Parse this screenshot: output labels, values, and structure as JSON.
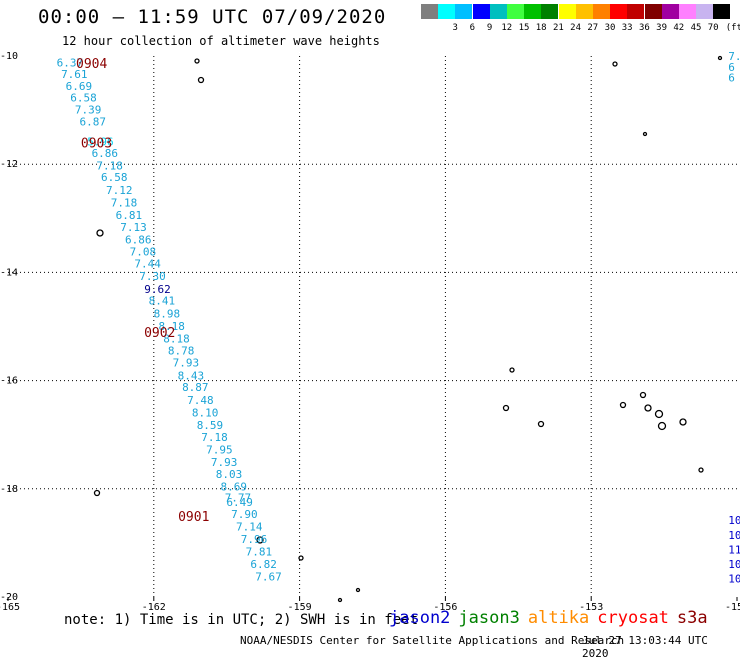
{
  "title": "00:00 — 11:59 UTC 07/09/2020",
  "subtitle": "12 hour collection of altimeter wave heights",
  "legend": {
    "unit": "(ft)",
    "items": [
      {
        "label": "",
        "color": "#7f7f7f"
      },
      {
        "label": "3",
        "color": "#00ffff"
      },
      {
        "label": "6",
        "color": "#00bfff"
      },
      {
        "label": "9",
        "color": "#0000ff"
      },
      {
        "label": "12",
        "color": "#00bfbf"
      },
      {
        "label": "15",
        "color": "#40ff40"
      },
      {
        "label": "18",
        "color": "#00c000"
      },
      {
        "label": "21",
        "color": "#008000"
      },
      {
        "label": "24",
        "color": "#ffff00"
      },
      {
        "label": "27",
        "color": "#ffc000"
      },
      {
        "label": "30",
        "color": "#ff8000"
      },
      {
        "label": "33",
        "color": "#ff0000"
      },
      {
        "label": "36",
        "color": "#c00000"
      },
      {
        "label": "39",
        "color": "#800000"
      },
      {
        "label": "42",
        "color": "#a000a0"
      },
      {
        "label": "45",
        "color": "#ff80ff"
      },
      {
        "label": "70",
        "color": "#c8b4f0"
      },
      {
        "label": "",
        "color": "#000000"
      }
    ]
  },
  "axes": {
    "x_ticks": [
      "-165",
      "-162",
      "-159",
      "-156",
      "-153",
      "-150"
    ],
    "y_ticks": [
      "-10",
      "-12",
      "-14",
      "-16",
      "-18",
      "-20"
    ],
    "lon_range": [
      -165,
      -150
    ],
    "lat_range": [
      -20,
      -10
    ],
    "grid": "dotted"
  },
  "chart_data": {
    "type": "scatter",
    "track_hours": [
      {
        "label": "0904",
        "lat": -10.13
      },
      {
        "label": "0903",
        "lat": -11.6
      },
      {
        "label": "0902",
        "lat": -15.1
      },
      {
        "label": "0901",
        "lat": -18.5
      }
    ],
    "track": [
      {
        "lat": -10.12,
        "value": "6.37",
        "color": "#1aa3d6"
      },
      {
        "lat": -10.33,
        "value": "7.61",
        "color": "#1aa3d6"
      },
      {
        "lat": -10.55,
        "value": "6.69",
        "color": "#1aa3d6"
      },
      {
        "lat": -10.77,
        "value": "6.58",
        "color": "#1aa3d6"
      },
      {
        "lat": -10.99,
        "value": "7.39",
        "color": "#1aa3d6"
      },
      {
        "lat": -11.21,
        "value": "6.87",
        "color": "#1aa3d6"
      },
      {
        "lat": -11.58,
        "value": "5.96",
        "color": "#00d2f0"
      },
      {
        "lat": -11.79,
        "value": "6.86",
        "color": "#1aa3d6"
      },
      {
        "lat": -12.02,
        "value": "7.18",
        "color": "#1aa3d6"
      },
      {
        "lat": -12.24,
        "value": "6.58",
        "color": "#1aa3d6"
      },
      {
        "lat": -12.48,
        "value": "7.12",
        "color": "#1aa3d6"
      },
      {
        "lat": -12.71,
        "value": "7.18",
        "color": "#1aa3d6"
      },
      {
        "lat": -12.94,
        "value": "6.81",
        "color": "#1aa3d6"
      },
      {
        "lat": -13.16,
        "value": "7.13",
        "color": "#1aa3d6"
      },
      {
        "lat": -13.39,
        "value": "6.86",
        "color": "#1aa3d6"
      },
      {
        "lat": -13.61,
        "value": "7.08",
        "color": "#1aa3d6"
      },
      {
        "lat": -13.84,
        "value": "7.44",
        "color": "#1aa3d6"
      },
      {
        "lat": -14.07,
        "value": "7.30",
        "color": "#1aa3d6"
      },
      {
        "lat": -14.31,
        "value": "9.62",
        "color": "#00008b"
      },
      {
        "lat": -14.52,
        "value": "8.41",
        "color": "#1aa3d6"
      },
      {
        "lat": -14.76,
        "value": "8.98",
        "color": "#1aa3d6"
      },
      {
        "lat": -14.99,
        "value": "8.18",
        "color": "#1aa3d6"
      },
      {
        "lat": -15.22,
        "value": "8.18",
        "color": "#1aa3d6"
      },
      {
        "lat": -15.44,
        "value": "8.78",
        "color": "#1aa3d6"
      },
      {
        "lat": -15.67,
        "value": "7.93",
        "color": "#1aa3d6"
      },
      {
        "lat": -15.91,
        "value": "8.43",
        "color": "#1aa3d6"
      },
      {
        "lat": -16.12,
        "value": "8.87",
        "color": "#1aa3d6"
      },
      {
        "lat": -16.36,
        "value": "7.48",
        "color": "#1aa3d6"
      },
      {
        "lat": -16.59,
        "value": "8.10",
        "color": "#1aa3d6"
      },
      {
        "lat": -16.82,
        "value": "8.59",
        "color": "#1aa3d6"
      },
      {
        "lat": -17.04,
        "value": "7.18",
        "color": "#1aa3d6"
      },
      {
        "lat": -17.27,
        "value": "7.95",
        "color": "#1aa3d6"
      },
      {
        "lat": -17.5,
        "value": "7.93",
        "color": "#1aa3d6"
      },
      {
        "lat": -17.73,
        "value": "8.03",
        "color": "#1aa3d6"
      },
      {
        "lat": -17.96,
        "value": "8.69",
        "color": "#1aa3d6"
      },
      {
        "lat": -18.16,
        "value": "7.77",
        "color": "#1aa3d6"
      },
      {
        "lat": -18.24,
        "value": "6.49",
        "color": "#1aa3d6"
      },
      {
        "lat": -18.47,
        "value": "7.90",
        "color": "#1aa3d6"
      },
      {
        "lat": -18.7,
        "value": "7.14",
        "color": "#1aa3d6"
      },
      {
        "lat": -18.93,
        "value": "7.96",
        "color": "#1aa3d6"
      },
      {
        "lat": -19.16,
        "value": "7.81",
        "color": "#1aa3d6"
      },
      {
        "lat": -19.39,
        "value": "6.82",
        "color": "#1aa3d6"
      },
      {
        "lat": -19.62,
        "value": "7.67",
        "color": "#1aa3d6"
      }
    ],
    "right_track": [
      {
        "lat": -10.0,
        "value": "7.",
        "color": "#1aa3d6"
      },
      {
        "lat": -10.2,
        "value": "6",
        "color": "#1aa3d6"
      },
      {
        "lat": -10.4,
        "value": "6",
        "color": "#1aa3d6"
      },
      {
        "lat": -18.58,
        "value": "10",
        "color": "#0000cd"
      },
      {
        "lat": -18.85,
        "value": "10",
        "color": "#0000cd"
      },
      {
        "lat": -19.12,
        "value": "11",
        "color": "#0000cd"
      },
      {
        "lat": -19.39,
        "value": "10.",
        "color": "#0000cd"
      },
      {
        "lat": -19.66,
        "value": "10.5",
        "color": "#0000cd"
      }
    ]
  },
  "note": "note: 1) Time is in UTC; 2) SWH is in feet",
  "satellites": [
    {
      "name": "jason2",
      "color": "#0000cd"
    },
    {
      "name": "jason3",
      "color": "#008000"
    },
    {
      "name": "altika",
      "color": "#ff8c00"
    },
    {
      "name": "cryosat",
      "color": "#ff0000"
    },
    {
      "name": "s3a",
      "color": "#8b0000"
    }
  ],
  "footer": {
    "credit": "NOAA/NESDIS Center for Satellite Applications and Research",
    "date": "Jul 27 13:03:44 UTC 2020"
  }
}
